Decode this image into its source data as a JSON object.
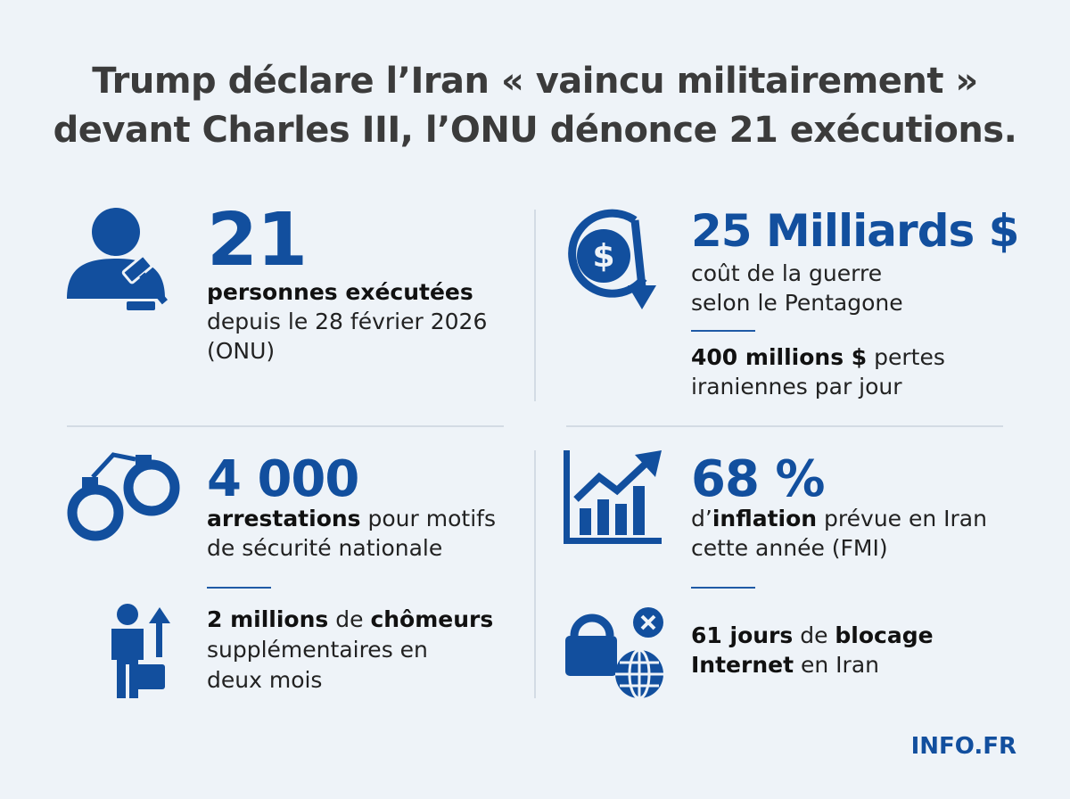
{
  "title": {
    "lines": [
      "Trump déclare l’Iran « vaincu militairement »",
      "devant Charles III, l’ONU dénonce 21 exécutions."
    ]
  },
  "panels": [
    {
      "figure": "21",
      "text": [
        [
          {
            "text": "personnes exécutées",
            "bold": true
          }
        ],
        [
          {
            "text": "depuis le 28 février 2026",
            "bold": false
          }
        ],
        [
          {
            "text": "(ONU)",
            "bold": false
          }
        ]
      ]
    },
    {
      "figure": "25 Milliards $",
      "text": [
        [
          {
            "text": "coût de la guerre",
            "bold": false
          }
        ],
        [
          {
            "text": "selon le Pentagone",
            "bold": false
          }
        ]
      ],
      "note": [
        [
          {
            "text": "400 millions $",
            "bold": true
          },
          {
            "text": " pertes",
            "bold": false
          }
        ],
        [
          {
            "text": "iraniennes par jour",
            "bold": false
          }
        ]
      ]
    },
    {
      "figure": "4 000",
      "text": [
        [
          {
            "text": "arrestations",
            "bold": true
          },
          {
            "text": " pour motifs",
            "bold": false
          }
        ],
        [
          {
            "text": "de sécurité nationale",
            "bold": false
          }
        ]
      ],
      "note": [
        [
          {
            "text": "2 millions",
            "bold": true
          },
          {
            "text": " de ",
            "bold": false
          },
          {
            "text": "chômeurs",
            "bold": true
          }
        ],
        [
          {
            "text": "supplémentaires en",
            "bold": false
          }
        ],
        [
          {
            "text": "deux mois",
            "bold": false
          }
        ]
      ]
    },
    {
      "figure": "68 %",
      "text": [
        [
          {
            "text": "d’",
            "bold": false
          },
          {
            "text": "inflation",
            "bold": true
          },
          {
            "text": " prévue en Iran",
            "bold": false
          }
        ],
        [
          {
            "text": "cette année (FMI)",
            "bold": false
          }
        ]
      ],
      "note": [
        [
          {
            "text": "61 jours",
            "bold": true
          },
          {
            "text": " de ",
            "bold": false
          },
          {
            "text": "blocage",
            "bold": true
          }
        ],
        [
          {
            "text": "Internet",
            "bold": true
          },
          {
            "text": " en Iran",
            "bold": false
          }
        ]
      ]
    }
  ],
  "footer": "INFO.FR"
}
